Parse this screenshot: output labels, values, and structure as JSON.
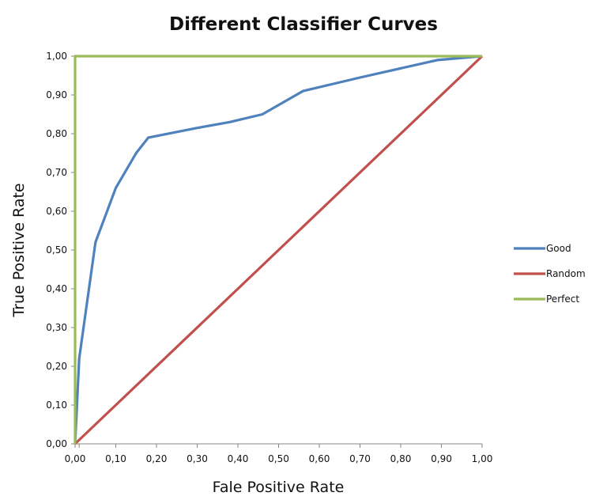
{
  "chart_data": {
    "type": "line",
    "title": "Different Classifier Curves",
    "xlabel": "Fale Positive Rate",
    "ylabel": "True Positive Rate",
    "xlim": [
      0,
      1
    ],
    "ylim": [
      0,
      1
    ],
    "x_ticks": [
      "0,00",
      "0,10",
      "0,20",
      "0,30",
      "0,40",
      "0,50",
      "0,60",
      "0,70",
      "0,80",
      "0,90",
      "1,00"
    ],
    "x_ticks_minor": [
      "0,01"
    ],
    "y_ticks": [
      "0,00",
      "0,10",
      "0,20",
      "0,30",
      "0,40",
      "0,50",
      "0,60",
      "0,70",
      "0,80",
      "0,90",
      "1,00"
    ],
    "grid": false,
    "legend_position": "right",
    "series": [
      {
        "name": "Good",
        "color": "#4f81bd",
        "points": [
          [
            0.0,
            0.0
          ],
          [
            0.01,
            0.22
          ],
          [
            0.05,
            0.52
          ],
          [
            0.1,
            0.66
          ],
          [
            0.15,
            0.75
          ],
          [
            0.18,
            0.79
          ],
          [
            0.3,
            0.815
          ],
          [
            0.38,
            0.83
          ],
          [
            0.46,
            0.85
          ],
          [
            0.56,
            0.91
          ],
          [
            0.7,
            0.945
          ],
          [
            0.89,
            0.99
          ],
          [
            1.0,
            1.0
          ]
        ]
      },
      {
        "name": "Random",
        "color": "#c0504d",
        "points": [
          [
            0.0,
            0.0
          ],
          [
            1.0,
            1.0
          ]
        ]
      },
      {
        "name": "Perfect",
        "color": "#9bbb59",
        "points": [
          [
            0.0,
            0.0
          ],
          [
            0.0,
            1.0
          ],
          [
            1.0,
            1.0
          ]
        ]
      }
    ]
  }
}
